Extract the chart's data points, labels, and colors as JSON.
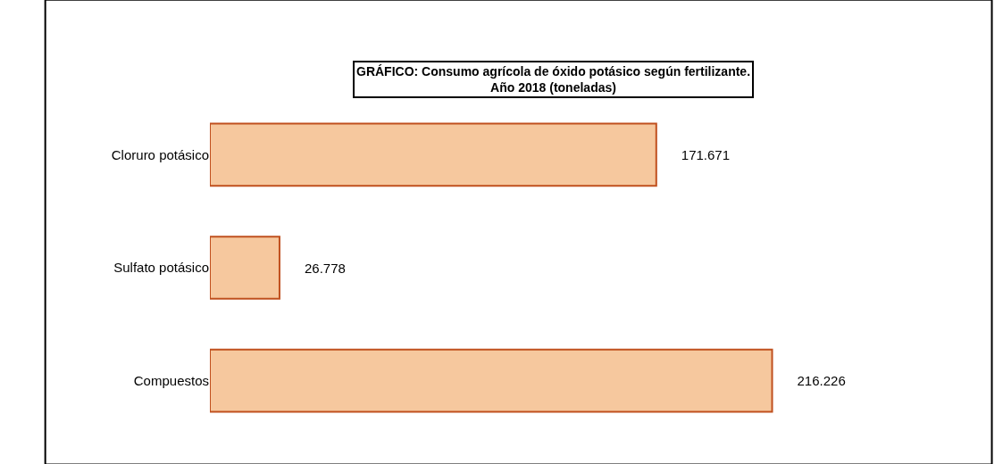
{
  "chart_data": {
    "type": "bar",
    "orientation": "horizontal",
    "title": "GRÁFICO: Consumo agrícola de óxido potásico según fertilizante.\nAño 2018 (toneladas)",
    "categories": [
      "Cloruro potásico",
      "Sulfato potásico",
      "Compuestos"
    ],
    "values": [
      171671,
      26778,
      216226
    ],
    "value_labels": [
      "171.671",
      "26.778",
      "216.226"
    ],
    "color": "#f6c89e"
  }
}
